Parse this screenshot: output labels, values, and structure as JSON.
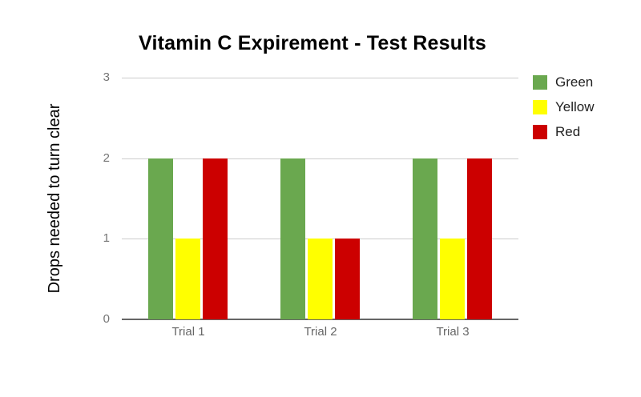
{
  "chart_data": {
    "type": "bar",
    "title": "Vitamin C Expirement - Test Results",
    "ylabel": "Drops needed to turn clear",
    "xlabel": "",
    "categories": [
      "Trial 1",
      "Trial 2",
      "Trial 3"
    ],
    "series": [
      {
        "name": "Green",
        "color": "#6aa84f",
        "values": [
          2,
          2,
          2
        ]
      },
      {
        "name": "Yellow",
        "color": "#ffff00",
        "values": [
          1,
          1,
          1
        ]
      },
      {
        "name": "Red",
        "color": "#cc0000",
        "values": [
          2,
          1,
          2
        ]
      }
    ],
    "ylim": [
      0,
      3
    ],
    "yticks": [
      0,
      1,
      2,
      3
    ],
    "grid": true,
    "legend_position": "right"
  },
  "palette": {
    "background": "#ffffff",
    "gridline": "#cccccc",
    "axis_line": "#666666",
    "tick_label": "#757575",
    "category_label": "#666666",
    "title_text": "#000000",
    "legend_text": "#212121"
  }
}
